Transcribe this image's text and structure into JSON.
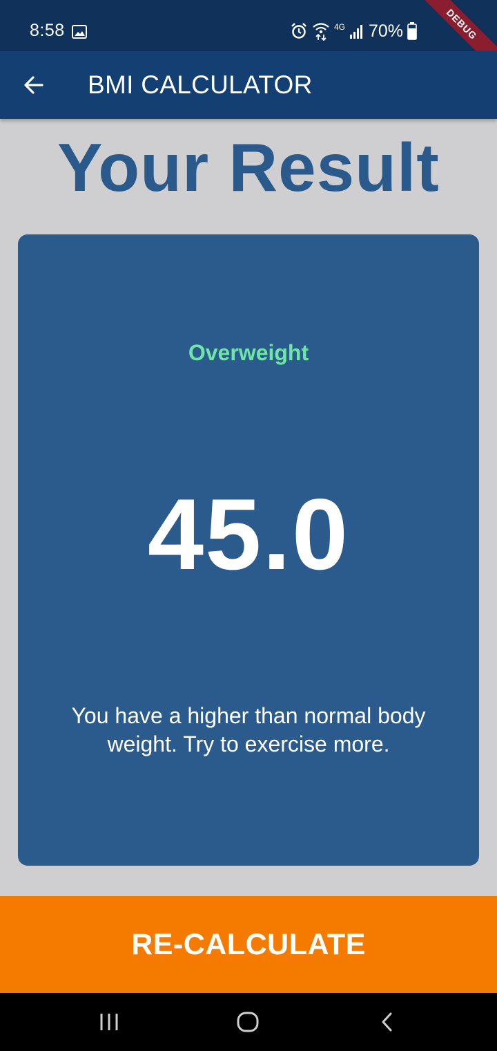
{
  "status_bar": {
    "time": "8:58",
    "battery_percent": "70%",
    "network_label": "4G",
    "debug_label": "DEBUG",
    "icons": [
      "gallery-icon",
      "alarm-icon",
      "wifi-icon",
      "signal-icon",
      "battery-icon"
    ]
  },
  "app_bar": {
    "title": "BMI CALCULATOR",
    "back_icon": "arrow-back-icon"
  },
  "main": {
    "heading": "Your Result",
    "card": {
      "category": "Overweight",
      "bmi": "45.0",
      "advice": "You have a higher than normal body weight. Try to exercise more."
    }
  },
  "footer": {
    "button_label": "RE-CALCULATE"
  },
  "nav_bar": {
    "icons": [
      "recent-apps-icon",
      "home-icon",
      "back-icon"
    ]
  },
  "colors": {
    "status_bar": "#103159",
    "app_bar": "#133f73",
    "background": "#cfcfd1",
    "heading": "#2a5a8c",
    "card": "#2b5a8c",
    "category": "#6fe6a8",
    "button": "#f47b00",
    "nav_bar": "#000000"
  }
}
